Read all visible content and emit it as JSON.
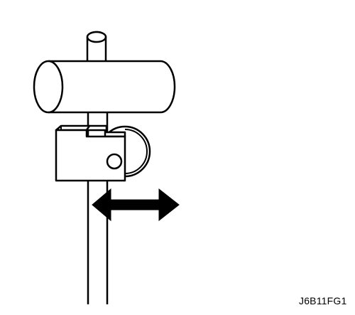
{
  "figure": {
    "code": "J6B11FG1"
  },
  "colors": {
    "line": "#000000",
    "fill": "#ffffff"
  }
}
